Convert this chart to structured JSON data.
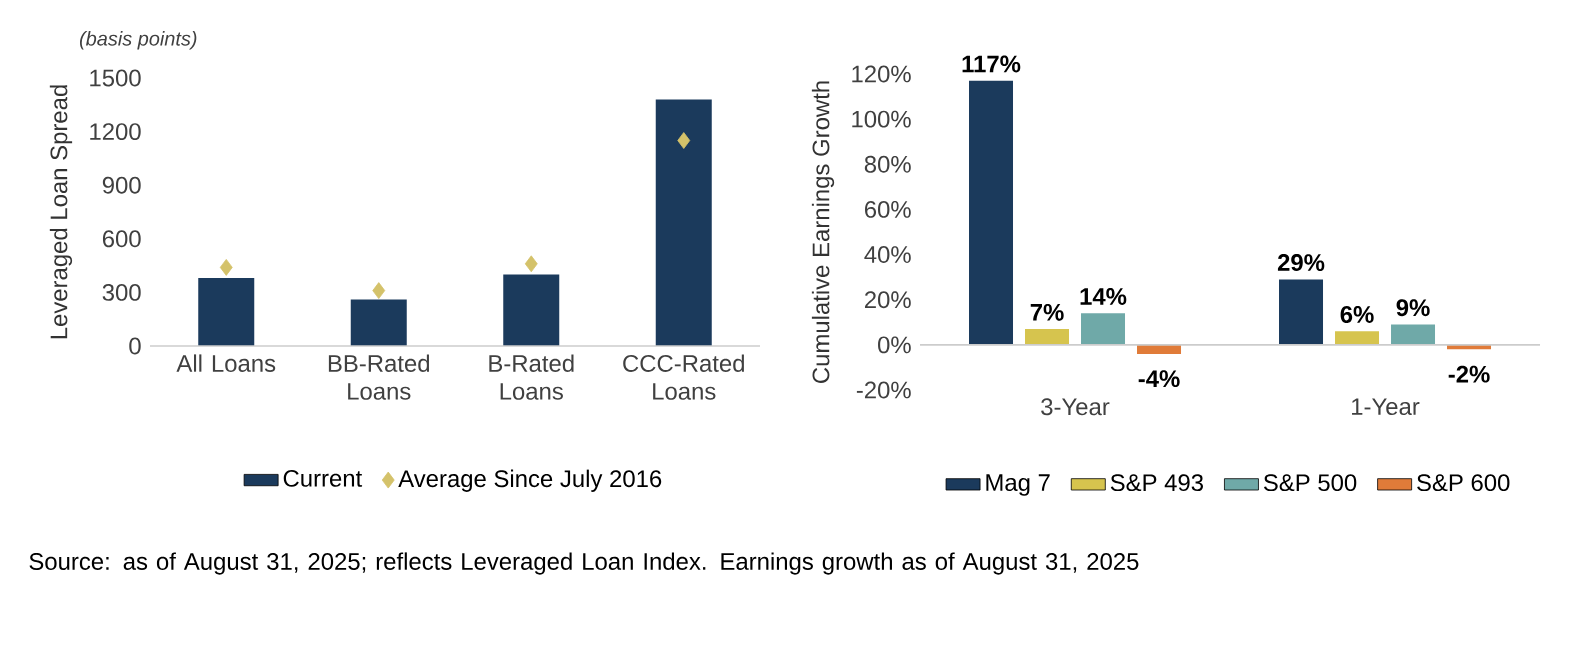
{
  "chart_data": [
    {
      "type": "bar",
      "subtitle": "(basis points)",
      "ylabel": "Leveraged Loan Spread",
      "categories": [
        "All Loans",
        "BB-Rated Loans",
        "B-Rated Loans",
        "CCC-Rated Loans"
      ],
      "series": [
        {
          "name": "Current",
          "color": "#1b3a5c",
          "values": [
            380,
            260,
            400,
            1380
          ]
        },
        {
          "name": "Average Since July 2016",
          "type": "scatter",
          "marker": "diamond",
          "color": "#d4c26a",
          "values": [
            440,
            310,
            460,
            1150
          ]
        }
      ],
      "ylim": [
        0,
        1500
      ],
      "yticks": [
        0,
        300,
        600,
        900,
        1200,
        1500
      ],
      "legend": "bottom",
      "annotations": [
        "Source: as of August 31, 2025; reflects Leveraged Loan Index. Earnings growth as of August 31, 2025"
      ]
    },
    {
      "type": "bar",
      "ylabel": "Cumulative Earnings Growth",
      "categories": [
        "3-Year",
        "1-Year"
      ],
      "series": [
        {
          "name": "Mag 7",
          "color": "#1b3a5c",
          "values": [
            117,
            29
          ],
          "value_labels": [
            "117%",
            "29%"
          ]
        },
        {
          "name": "S&P 493",
          "color": "#d6c44e",
          "values": [
            7,
            6
          ],
          "value_labels": [
            "7%",
            "6%"
          ]
        },
        {
          "name": "S&P 500",
          "color": "#6fa9a8",
          "values": [
            14,
            9
          ],
          "value_labels": [
            "14%",
            "9%"
          ]
        },
        {
          "name": "S&P 600",
          "color": "#e07b39",
          "values": [
            -4,
            -2
          ],
          "value_labels": [
            "-4%",
            "-2%"
          ]
        }
      ],
      "ylim": [
        -20,
        120
      ],
      "yticks": [
        {
          "value": -20,
          "label": "-20%"
        },
        {
          "value": 0,
          "label": "0%"
        },
        {
          "value": 20,
          "label": "20%"
        },
        {
          "value": 40,
          "label": "40%"
        },
        {
          "value": 60,
          "label": "60%"
        },
        {
          "value": 80,
          "label": "80%"
        },
        {
          "value": 100,
          "label": "100%"
        },
        {
          "value": 120,
          "label": "120%"
        }
      ],
      "legend": "bottom"
    }
  ]
}
